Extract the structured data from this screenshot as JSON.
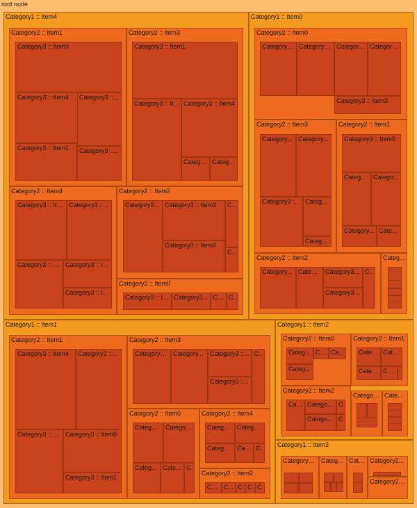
{
  "root_label": "root node",
  "colors": {
    "root": "#fdbf6f",
    "level1": "#f39a1f",
    "level2": "#ed6a1e",
    "level3": "#c8421c"
  },
  "chart_data": {
    "type": "treemap",
    "title": "",
    "name": "root node",
    "children": [
      {
        "name": "Category1 :: Item4",
        "children": [
          {
            "name": "Category2 :: Item1",
            "children": [
              {
                "name": "Category3 :: Item0"
              },
              {
                "name": "Category3 :: Item4"
              },
              {
                "name": "Category3 ::..."
              },
              {
                "name": "Category3 :: Item1"
              },
              {
                "name": "Category3 ::..."
              }
            ]
          },
          {
            "name": "Category2 :: Item3",
            "children": [
              {
                "name": "Category3 :: Item1"
              },
              {
                "name": "Category3 :: It..."
              },
              {
                "name": "Category3 :: Item4"
              },
              {
                "name": "Catego..."
              },
              {
                "name": "Catego..."
              }
            ]
          },
          {
            "name": "Category2 :: Item4",
            "children": [
              {
                "name": "Category3 :: Ite..."
              },
              {
                "name": "Category3 ::..."
              },
              {
                "name": "Category3 :: It..."
              },
              {
                "name": "Category3 :: It..."
              },
              {
                "name": "Category3 :: It..."
              }
            ]
          },
          {
            "name": "Category2 :: Item2",
            "children": [
              {
                "name": "Category3..."
              },
              {
                "name": "Category3 :: Item3"
              },
              {
                "name": "C..."
              },
              {
                "name": "Category3 :: Item0"
              },
              {
                "name": "C..."
              }
            ]
          },
          {
            "name": "Category2 :: Item0",
            "children": [
              {
                "name": "Category3 :: It..."
              },
              {
                "name": "Category3..."
              },
              {
                "name": "Ca..."
              },
              {
                "name": "C..."
              }
            ]
          }
        ]
      },
      {
        "name": "Category1 :: Item0",
        "children": [
          {
            "name": "Category2 :: Item0",
            "children": [
              {
                "name": "Category3..."
              },
              {
                "name": "Category3..."
              },
              {
                "name": "Category..."
              },
              {
                "name": "Category..."
              },
              {
                "name": "Category3 :: Item3"
              }
            ]
          },
          {
            "name": "Category2 :: Item3",
            "children": [
              {
                "name": "Category..."
              },
              {
                "name": "Category..."
              },
              {
                "name": "Category3 ::..."
              },
              {
                "name": "Categ..."
              },
              {
                "name": "Categ..."
              }
            ]
          },
          {
            "name": "Category2 :: Item1",
            "children": [
              {
                "name": "Category3 :: Item0"
              },
              {
                "name": "Catego..."
              },
              {
                "name": "Catego..."
              },
              {
                "name": "Category..."
              },
              {
                "name": "Cate..."
              }
            ]
          },
          {
            "name": "Category2 :: Item2",
            "children": [
              {
                "name": "Category..."
              },
              {
                "name": "Catego..."
              },
              {
                "name": "Category3..."
              },
              {
                "name": "C..."
              },
              {
                "name": "Category3..."
              }
            ]
          },
          {
            "name": "Categ..."
          }
        ]
      },
      {
        "name": "Category1 :: Item1",
        "children": [
          {
            "name": "Category2 :: Item1",
            "children": [
              {
                "name": "Category3 :: Item4"
              },
              {
                "name": "Category3 ::..."
              },
              {
                "name": "Category3 :: It..."
              },
              {
                "name": "Category3 :: Item0"
              },
              {
                "name": "Category3 :: Item1"
              }
            ]
          },
          {
            "name": "Category2 :: Item3",
            "children": [
              {
                "name": "Category3..."
              },
              {
                "name": "Category..."
              },
              {
                "name": "Category3 ::..."
              },
              {
                "name": "C..."
              },
              {
                "name": "Category3 :: It..."
              }
            ]
          },
          {
            "name": "Category2 :: Item0",
            "children": [
              {
                "name": "Categor..."
              },
              {
                "name": "Categor..."
              },
              {
                "name": "Catego..."
              },
              {
                "name": "Cate..."
              },
              {
                "name": "C..."
              }
            ]
          },
          {
            "name": "Category2 :: Item4",
            "children": [
              {
                "name": "Categor..."
              },
              {
                "name": "Categor..."
              },
              {
                "name": "Categor..."
              },
              {
                "name": "Cat..."
              },
              {
                "name": "C..."
              }
            ]
          },
          {
            "name": "Category2 :: Item2",
            "children": [
              {
                "name": "Cat..."
              },
              {
                "name": "C..."
              },
              {
                "name": "C..."
              },
              {
                "name": "C..."
              },
              {
                "name": "C..."
              }
            ]
          }
        ]
      },
      {
        "name": "Category1 :: Item2",
        "children": [
          {
            "name": "Category2 :: Item0",
            "children": [
              {
                "name": "Categ..."
              },
              {
                "name": "Ca..."
              },
              {
                "name": "Ca..."
              },
              {
                "name": "Categ..."
              }
            ]
          },
          {
            "name": "Category2 :: Item1",
            "children": [
              {
                "name": "Categ..."
              },
              {
                "name": "Cat..."
              },
              {
                "name": "Categ..."
              },
              {
                "name": "Ca..."
              },
              {
                "name": "C"
              }
            ]
          },
          {
            "name": "Category2 :: Item2",
            "children": [
              {
                "name": "Cat..."
              },
              {
                "name": "Categor..."
              },
              {
                "name": "C..."
              },
              {
                "name": "Categor..."
              },
              {
                "name": "C..."
              }
            ]
          },
          {
            "name": "Category..."
          },
          {
            "name": "Cate..."
          }
        ]
      },
      {
        "name": "Category1 :: Item3",
        "children": [
          {
            "name": "Category2..."
          },
          {
            "name": "Catego..."
          },
          {
            "name": "Cate..."
          },
          {
            "name": "Category2..."
          },
          {
            "name": "Category2 :: Item2"
          }
        ]
      }
    ]
  }
}
